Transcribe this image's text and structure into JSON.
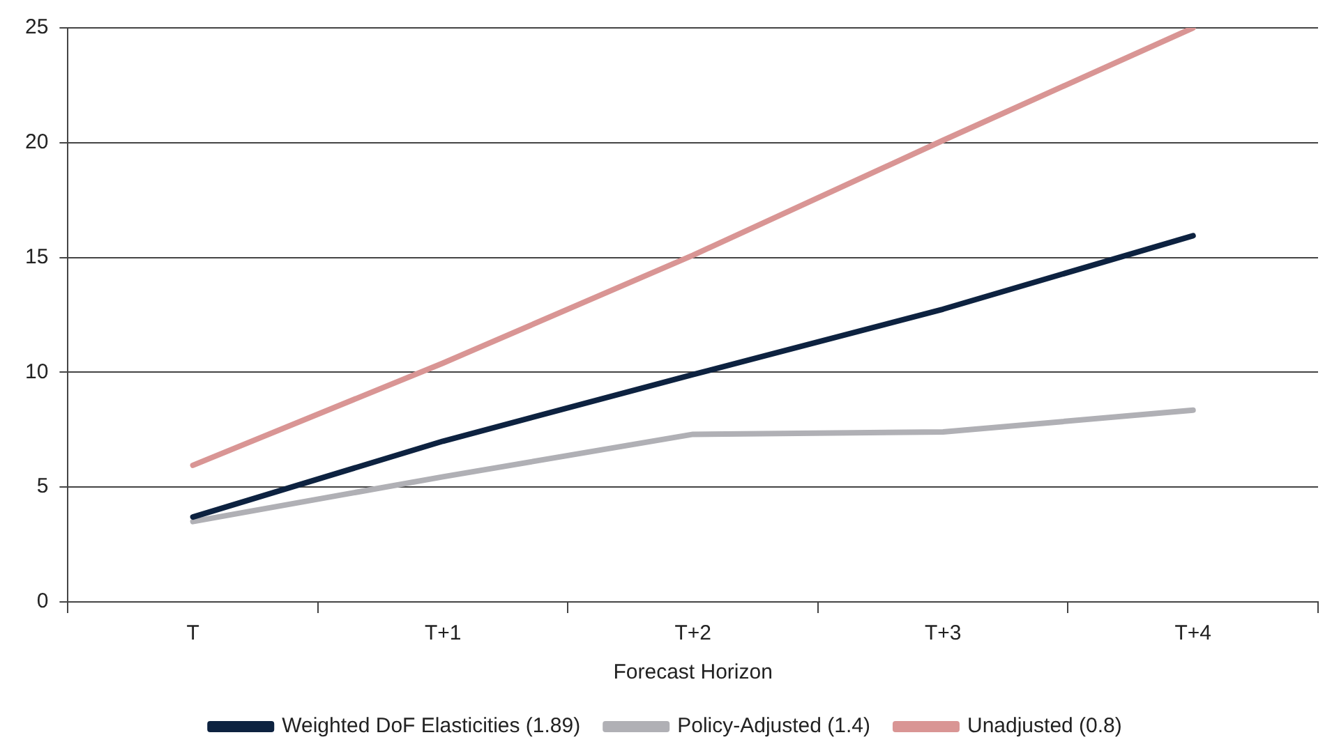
{
  "chart_data": {
    "type": "line",
    "xlabel": "Forecast Horizon",
    "categories": [
      "T",
      "T+1",
      "T+2",
      "T+3",
      "T+4"
    ],
    "series": [
      {
        "name": "Weighted DoF Elasticities (1.89)",
        "color": "#0d2240",
        "values": [
          3.7,
          7.0,
          9.9,
          12.75,
          15.95
        ]
      },
      {
        "name": "Policy-Adjusted (1.4)",
        "color": "#b0b0b5",
        "values": [
          3.5,
          5.45,
          7.3,
          7.4,
          8.35
        ]
      },
      {
        "name": "Unadjusted (0.8)",
        "color": "#d99594",
        "values": [
          5.95,
          10.4,
          15.1,
          20.1,
          25
        ]
      }
    ],
    "ylim": [
      0,
      25
    ],
    "yticks": [
      0,
      5,
      10,
      15,
      20,
      25
    ],
    "grid": "y",
    "legend": "bottom",
    "marker": "none",
    "line_style": "solid"
  }
}
